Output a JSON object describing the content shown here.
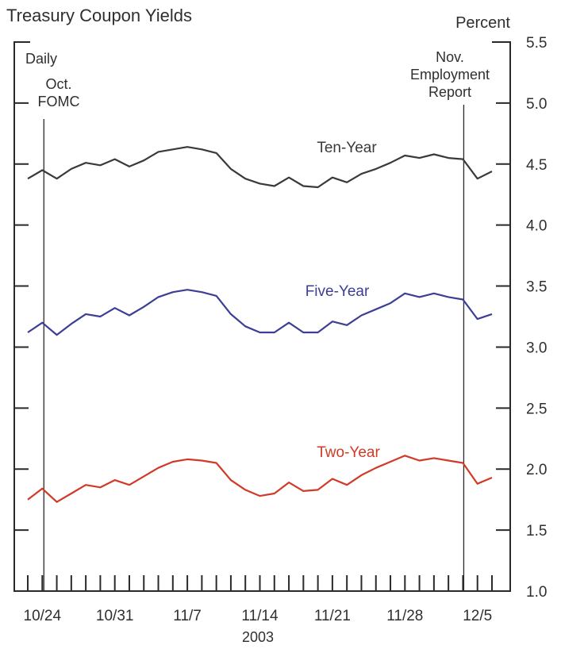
{
  "chart_data": {
    "type": "line",
    "title": "Treasury Coupon Yields",
    "frequency_label": "Daily",
    "ylabel": "Percent",
    "xlabel": "2003",
    "ylim": [
      1.0,
      5.5
    ],
    "y_ticks": [
      "1.0",
      "1.5",
      "2.0",
      "2.5",
      "3.0",
      "3.5",
      "4.0",
      "4.5",
      "5.0",
      "5.5"
    ],
    "y_tick_values": [
      1.0,
      1.5,
      2.0,
      2.5,
      3.0,
      3.5,
      4.0,
      4.5,
      5.0,
      5.5
    ],
    "x_tick_labels": [
      "10/24",
      "10/31",
      "11/7",
      "11/14",
      "11/21",
      "11/28",
      "12/5"
    ],
    "x_tick_label_index": [
      1,
      6,
      11,
      16,
      21,
      26,
      31
    ],
    "x_count": 33,
    "grid": false,
    "annotations": [
      {
        "name": "oct-fomc",
        "lines": [
          "Oct.",
          "FOMC"
        ],
        "index": 1
      },
      {
        "name": "nov-employment-report",
        "lines": [
          "Nov.",
          "Employment",
          "Report"
        ],
        "index": 30
      }
    ],
    "series": [
      {
        "name": "Ten-Year",
        "color": "#3a3a3a",
        "values": [
          4.38,
          4.45,
          4.38,
          4.46,
          4.51,
          4.49,
          4.54,
          4.48,
          4.53,
          4.6,
          4.62,
          4.64,
          4.62,
          4.59,
          4.46,
          4.38,
          4.34,
          4.32,
          4.39,
          4.32,
          4.31,
          4.39,
          4.35,
          4.42,
          4.46,
          4.51,
          4.57,
          4.55,
          4.58,
          4.55,
          4.54,
          4.38,
          4.44
        ]
      },
      {
        "name": "Five-Year",
        "color": "#3c3f93",
        "values": [
          3.12,
          3.2,
          3.1,
          3.19,
          3.27,
          3.25,
          3.32,
          3.26,
          3.33,
          3.41,
          3.45,
          3.47,
          3.45,
          3.42,
          3.27,
          3.17,
          3.12,
          3.12,
          3.2,
          3.12,
          3.12,
          3.21,
          3.18,
          3.26,
          3.31,
          3.36,
          3.44,
          3.41,
          3.44,
          3.41,
          3.39,
          3.23,
          3.27
        ]
      },
      {
        "name": "Two-Year",
        "color": "#d23a28",
        "values": [
          1.75,
          1.84,
          1.73,
          1.8,
          1.87,
          1.85,
          1.91,
          1.87,
          1.94,
          2.01,
          2.06,
          2.08,
          2.07,
          2.05,
          1.91,
          1.83,
          1.78,
          1.8,
          1.89,
          1.82,
          1.83,
          1.92,
          1.87,
          1.95,
          2.01,
          2.06,
          2.11,
          2.07,
          2.09,
          2.07,
          2.05,
          1.88,
          1.93
        ]
      }
    ]
  }
}
